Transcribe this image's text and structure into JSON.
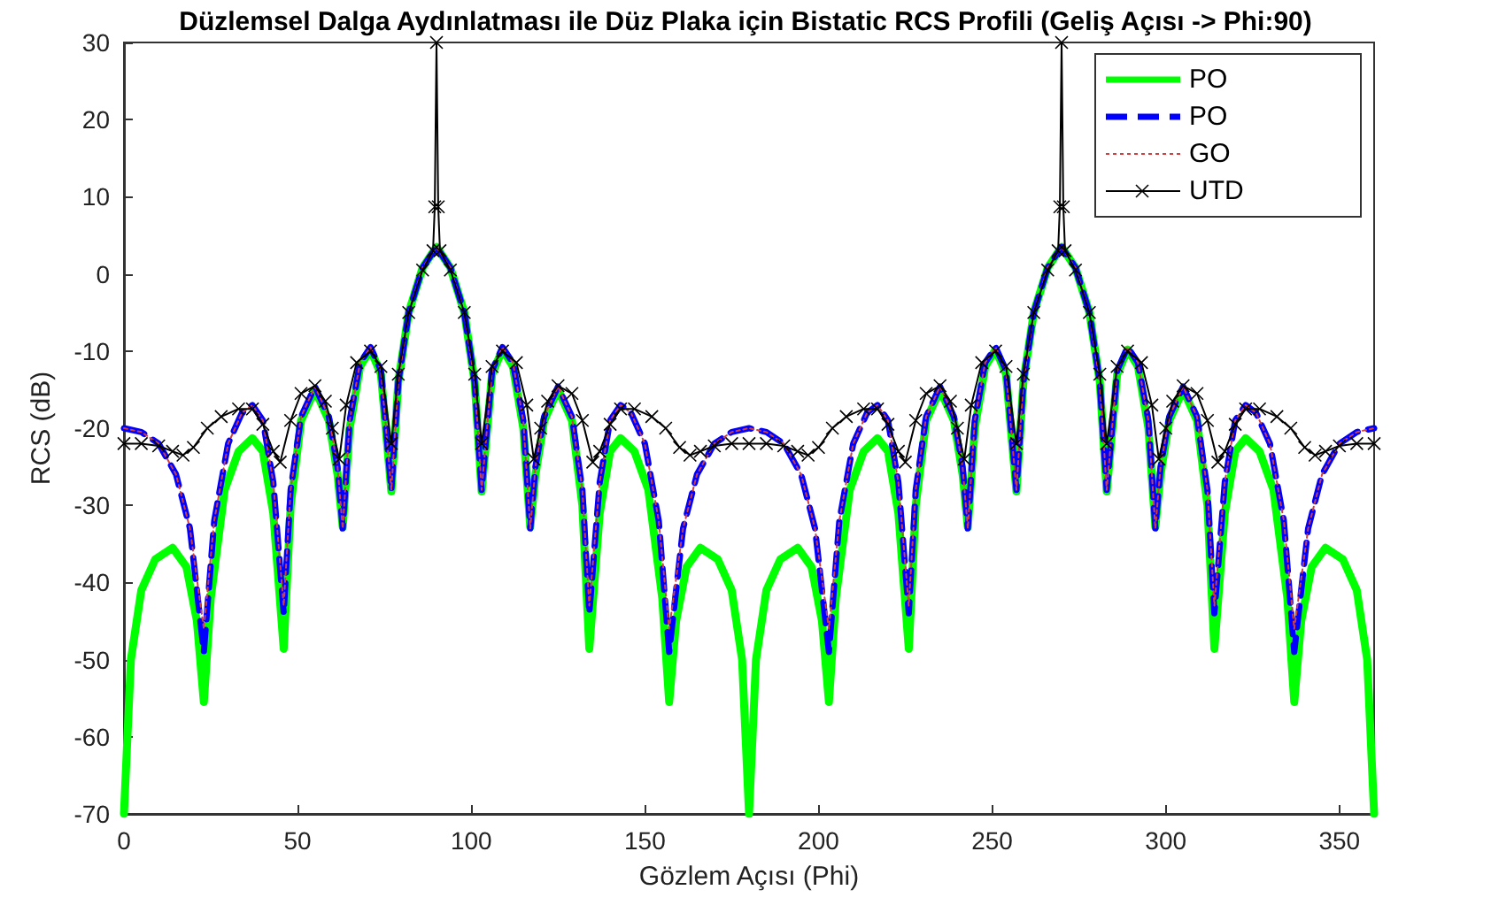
{
  "chart_data": {
    "type": "line",
    "title": "Düzlemsel Dalga Aydınlatması ile Düz Plaka için Bistatic RCS Profili (Geliş Açısı -> Phi:90)",
    "xlabel": "Gözlem Açısı (Phi)",
    "ylabel": "RCS (dB)",
    "xlim": [
      0,
      360
    ],
    "xticks": [
      0,
      50,
      100,
      150,
      200,
      250,
      300,
      350
    ],
    "ylim": [
      -70,
      30
    ],
    "yticks": [
      -70,
      -60,
      -50,
      -40,
      -30,
      -20,
      -10,
      0,
      10,
      20,
      30
    ],
    "grid": false,
    "legend": "top right",
    "series": [
      {
        "name": "PO",
        "color": "#00ff00",
        "line_style": "solid",
        "marker": "none",
        "x": [
          0,
          2,
          5,
          9,
          14,
          18,
          21,
          23,
          25,
          29,
          33,
          37,
          40,
          43,
          46,
          48,
          51,
          55,
          59,
          61.5,
          63,
          65,
          68,
          71,
          74,
          77,
          79,
          82,
          86,
          90,
          94,
          98,
          101,
          103,
          106,
          109,
          112,
          115,
          117,
          118.5,
          121,
          125,
          129,
          132,
          134,
          137,
          140,
          143,
          147,
          151,
          155,
          157,
          159,
          162,
          166,
          171,
          175,
          178,
          180,
          182,
          185,
          189,
          194,
          198,
          201,
          203,
          205,
          209,
          213,
          217,
          220,
          223,
          226,
          228,
          231,
          235,
          239,
          241.5,
          243,
          245,
          248,
          251,
          254,
          257,
          259,
          262,
          266,
          270,
          274,
          278,
          281,
          283,
          286,
          289,
          292,
          295,
          297,
          298.5,
          301,
          305,
          309,
          312,
          314,
          317,
          320,
          323,
          327,
          331,
          335,
          337,
          339,
          342,
          346,
          351,
          355,
          358,
          360
        ],
        "values": [
          -70,
          -50,
          -41,
          -37,
          -35.5,
          -38,
          -45,
          -55.5,
          -42,
          -28,
          -23,
          -21.3,
          -23,
          -31,
          -48.6,
          -30,
          -19,
          -15,
          -19,
          -26,
          -32.8,
          -20,
          -12,
          -9.8,
          -13,
          -28.2,
          -14,
          -5,
          0.8,
          3.5,
          0.8,
          -5,
          -14,
          -28.2,
          -13,
          -9.8,
          -12,
          -20,
          -32.8,
          -26,
          -19,
          -15,
          -19,
          -30,
          -48.6,
          -31,
          -23,
          -21.3,
          -23,
          -28,
          -42,
          -55.5,
          -45,
          -38,
          -35.5,
          -37,
          -41,
          -50,
          -70,
          -50,
          -41,
          -37,
          -35.5,
          -38,
          -45,
          -55.5,
          -42,
          -28,
          -23,
          -21.3,
          -23,
          -31,
          -48.6,
          -30,
          -19,
          -15,
          -19,
          -26,
          -32.8,
          -20,
          -12,
          -9.8,
          -13,
          -28.2,
          -14,
          -5,
          0.8,
          3.5,
          0.8,
          -5,
          -14,
          -28.2,
          -13,
          -9.8,
          -12,
          -20,
          -32.8,
          -26,
          -19,
          -15,
          -19,
          -30,
          -48.6,
          -31,
          -23,
          -21.3,
          -23,
          -28,
          -42,
          -55.5,
          -45,
          -38,
          -35.5,
          -37,
          -41,
          -50,
          -70
        ]
      },
      {
        "name": "PO",
        "color": "#0000ff",
        "line_style": "dashed",
        "marker": "none",
        "x": [
          0,
          5,
          10,
          15,
          19,
          23,
          26,
          30,
          34,
          37,
          40,
          43,
          46,
          48,
          51,
          55,
          59,
          61.5,
          63,
          65,
          68,
          71,
          74,
          77,
          79,
          82,
          86,
          90,
          94,
          98,
          101,
          103,
          106,
          109,
          112,
          115,
          117,
          118.5,
          121,
          125,
          129,
          132,
          134,
          137,
          140,
          143,
          146,
          150,
          154,
          157,
          161,
          165,
          170,
          175,
          180,
          185,
          190,
          195,
          199,
          203,
          206,
          210,
          214,
          217,
          220,
          223,
          226,
          228,
          231,
          235,
          239,
          241.5,
          243,
          245,
          248,
          251,
          254,
          257,
          259,
          262,
          266,
          270,
          274,
          278,
          281,
          283,
          286,
          289,
          292,
          295,
          297,
          298.5,
          301,
          305,
          309,
          312,
          314,
          317,
          320,
          323,
          326,
          330,
          334,
          337,
          341,
          345,
          350,
          355,
          360
        ],
        "values": [
          -20,
          -20.5,
          -22,
          -26,
          -33,
          -49,
          -32,
          -22,
          -18,
          -17,
          -19,
          -27,
          -44,
          -28,
          -18.5,
          -14.6,
          -18.5,
          -25,
          -33,
          -19,
          -11.5,
          -9.5,
          -12.5,
          -28,
          -14,
          -5,
          0.8,
          3.5,
          0.8,
          -5,
          -14,
          -28,
          -12.5,
          -9.5,
          -11.5,
          -19,
          -33,
          -25,
          -18.5,
          -14.6,
          -18.5,
          -28,
          -44,
          -27,
          -19,
          -17,
          -18,
          -22,
          -32,
          -49,
          -33,
          -26,
          -22,
          -20.5,
          -20,
          -20.5,
          -22,
          -26,
          -33,
          -49,
          -32,
          -22,
          -18,
          -17,
          -19,
          -27,
          -44,
          -28,
          -18.5,
          -14.6,
          -18.5,
          -25,
          -33,
          -19,
          -11.5,
          -9.5,
          -12.5,
          -28,
          -14,
          -5,
          0.8,
          3.5,
          0.8,
          -5,
          -14,
          -28,
          -12.5,
          -9.5,
          -11.5,
          -19,
          -33,
          -25,
          -18.5,
          -14.6,
          -18.5,
          -28,
          -44,
          -27,
          -19,
          -17,
          -18,
          -22,
          -32,
          -49,
          -33,
          -26,
          -22,
          -20.5,
          -20
        ]
      },
      {
        "name": "GO",
        "color": "#d04040",
        "line_style": "dotted",
        "marker": "none",
        "x": [
          0,
          5,
          10,
          15,
          19,
          23,
          26,
          30,
          34,
          37,
          40,
          43,
          46,
          48,
          51,
          55,
          59,
          61.5,
          63,
          65,
          68,
          71,
          74,
          77,
          79,
          82,
          86,
          90,
          94,
          98,
          101,
          103,
          106,
          109,
          112,
          115,
          117,
          118.5,
          121,
          125,
          129,
          132,
          134,
          137,
          140,
          143,
          146,
          150,
          154,
          157,
          161,
          165,
          170,
          175,
          180,
          185,
          190,
          195,
          199,
          203,
          206,
          210,
          214,
          217,
          220,
          223,
          226,
          228,
          231,
          235,
          239,
          241.5,
          243,
          245,
          248,
          251,
          254,
          257,
          259,
          262,
          266,
          270,
          274,
          278,
          281,
          283,
          286,
          289,
          292,
          295,
          297,
          298.5,
          301,
          305,
          309,
          312,
          314,
          317,
          320,
          323,
          326,
          330,
          334,
          337,
          341,
          345,
          350,
          355,
          360
        ],
        "values": [
          -20,
          -20.5,
          -22,
          -26,
          -33,
          -46,
          -32,
          -22,
          -18,
          -17,
          -19,
          -27,
          -43,
          -28,
          -18.5,
          -14.6,
          -18.5,
          -25,
          -33,
          -19,
          -11.5,
          -9.5,
          -12.5,
          -28,
          -14,
          -5,
          0.8,
          3.5,
          0.8,
          -5,
          -14,
          -28,
          -12.5,
          -9.5,
          -11.5,
          -19,
          -33,
          -25,
          -18.5,
          -14.6,
          -18.5,
          -28,
          -43,
          -27,
          -19,
          -17,
          -18,
          -22,
          -32,
          -46,
          -33,
          -26,
          -22,
          -20.5,
          -20,
          -20.5,
          -22,
          -26,
          -33,
          -46,
          -32,
          -22,
          -18,
          -17,
          -19,
          -27,
          -43,
          -28,
          -18.5,
          -14.6,
          -18.5,
          -25,
          -33,
          -19,
          -11.5,
          -9.5,
          -12.5,
          -28,
          -14,
          -5,
          0.8,
          3.5,
          0.8,
          -5,
          -14,
          -28,
          -12.5,
          -9.5,
          -11.5,
          -19,
          -33,
          -25,
          -18.5,
          -14.6,
          -18.5,
          -28,
          -43,
          -27,
          -19,
          -17,
          -18,
          -22,
          -32,
          -46,
          -33,
          -26,
          -22,
          -20.5,
          -20
        ]
      },
      {
        "name": "UTD",
        "color": "#000000",
        "line_style": "solid",
        "marker": "cross",
        "x": [
          0,
          5,
          10,
          14,
          17,
          20,
          24,
          28,
          33,
          37,
          40,
          43,
          45,
          48,
          51,
          55,
          58,
          60,
          62,
          64,
          67,
          71,
          74,
          77,
          79,
          82,
          86,
          89,
          89.5,
          90,
          90.5,
          91,
          94,
          98,
          101,
          103,
          106,
          109,
          113,
          116,
          118,
          120,
          122,
          125,
          129,
          132,
          135,
          137,
          140,
          143,
          147,
          152,
          156,
          160,
          163,
          166,
          170,
          175,
          180,
          185,
          190,
          194,
          197,
          200,
          204,
          208,
          213,
          217,
          220,
          223,
          225,
          228,
          231,
          235,
          238,
          240,
          242,
          244,
          247,
          251,
          254,
          257,
          259,
          262,
          266,
          269,
          269.5,
          270,
          270.5,
          271,
          274,
          278,
          281,
          283,
          286,
          289,
          293,
          296,
          298,
          300,
          302,
          305,
          309,
          312,
          315,
          317,
          320,
          323,
          327,
          332,
          336,
          340,
          343,
          346,
          350,
          355,
          360
        ],
        "values": [
          -22,
          -22,
          -22.3,
          -23,
          -23.5,
          -22.5,
          -20,
          -18.5,
          -17.5,
          -17.5,
          -19.5,
          -23,
          -24.4,
          -19,
          -15.5,
          -14.5,
          -16.5,
          -20,
          -24,
          -17,
          -11.5,
          -10,
          -12,
          -22,
          -13,
          -5,
          0.5,
          3,
          8.7,
          30,
          8.7,
          3,
          0.5,
          -5,
          -13,
          -22,
          -12,
          -10,
          -11.5,
          -17,
          -24,
          -20,
          -16.5,
          -14.5,
          -15.5,
          -19,
          -24.4,
          -23,
          -19.5,
          -17.5,
          -17.5,
          -18.5,
          -20,
          -22.5,
          -23.5,
          -23,
          -22.3,
          -22,
          -22,
          -22,
          -22.3,
          -23,
          -23.5,
          -22.5,
          -20,
          -18.5,
          -17.5,
          -17.5,
          -19.5,
          -23,
          -24.4,
          -19,
          -15.5,
          -14.5,
          -16.5,
          -20,
          -24,
          -17,
          -11.5,
          -10,
          -12,
          -22,
          -13,
          -5,
          0.5,
          3,
          8.7,
          30,
          8.7,
          3,
          0.5,
          -5,
          -13,
          -22,
          -12,
          -10,
          -11.5,
          -17,
          -24,
          -20,
          -16.5,
          -14.5,
          -15.5,
          -19,
          -24.4,
          -23,
          -19.5,
          -17.5,
          -17.5,
          -18.5,
          -20,
          -22.5,
          -23.5,
          -23,
          -22.3,
          -22,
          -22
        ]
      }
    ]
  }
}
